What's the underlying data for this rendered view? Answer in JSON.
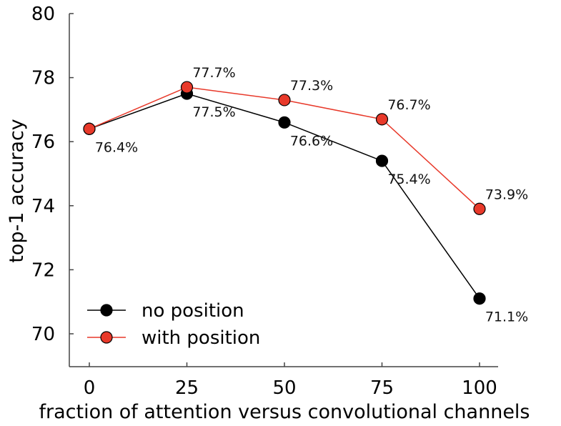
{
  "chart_data": {
    "type": "line",
    "title": "",
    "xlabel": "fraction of attention versus convolutional channels",
    "ylabel": "top-1 accuracy",
    "x": [
      0,
      25,
      50,
      75,
      100
    ],
    "xticks": [
      "0",
      "25",
      "50",
      "75",
      "100"
    ],
    "yticks": [
      "70",
      "72",
      "74",
      "76",
      "78",
      "80"
    ],
    "xlim": [
      -5,
      105
    ],
    "ylim": [
      69,
      80
    ],
    "grid": false,
    "legend_position": "bottom-left",
    "series": [
      {
        "name": "no position",
        "color": "#000000",
        "marker_color": "#000000",
        "values": [
          76.4,
          77.5,
          76.6,
          75.4,
          71.1
        ],
        "labels": [
          "76.4%",
          "77.5%",
          "76.6%",
          "75.4%",
          "71.1%"
        ]
      },
      {
        "name": "with position",
        "color": "#e8392a",
        "marker_color": "#e8392a",
        "values": [
          76.4,
          77.7,
          77.3,
          76.7,
          73.9
        ],
        "labels": [
          "",
          "77.7%",
          "77.3%",
          "76.7%",
          "73.9%"
        ]
      }
    ]
  }
}
